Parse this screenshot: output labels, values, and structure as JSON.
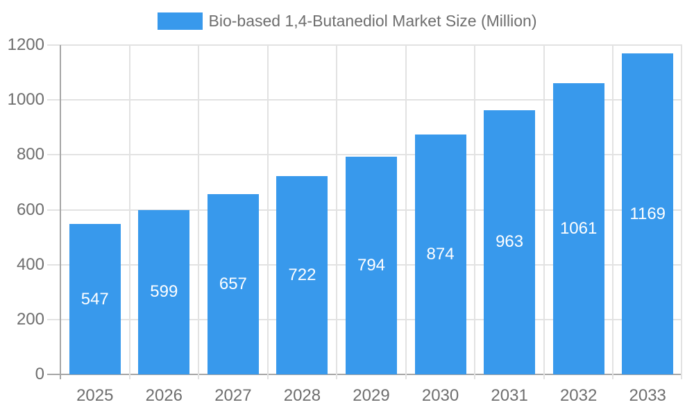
{
  "legend": {
    "label": "Bio-based 1,4-Butanediol Market Size (Million)"
  },
  "chart_data": {
    "type": "bar",
    "title": "Bio-based 1,4-Butanediol Market Size (Million)",
    "categories": [
      "2025",
      "2026",
      "2027",
      "2028",
      "2029",
      "2030",
      "2031",
      "2032",
      "2033"
    ],
    "values": [
      547,
      599,
      657,
      722,
      794,
      874,
      963,
      1061,
      1169
    ],
    "xlabel": "",
    "ylabel": "",
    "ylim": [
      0,
      1200
    ],
    "yticks": [
      0,
      200,
      400,
      600,
      800,
      1000,
      1200
    ],
    "grid": true,
    "legend_position": "top",
    "value_labels": "inside-center",
    "colors": {
      "bar": "#3899ec",
      "grid": "#e2e2e2",
      "axis": "#a5a5a5",
      "tick_text": "#6e6e6e",
      "value_label": "#ffffff",
      "legend_text": "#6e6e6e"
    }
  }
}
